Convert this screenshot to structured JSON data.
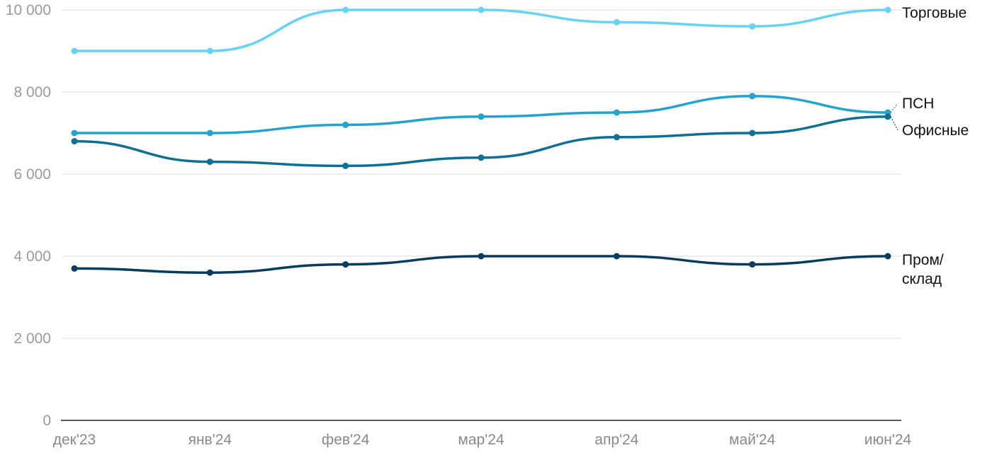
{
  "chart_data": {
    "type": "line",
    "title": "",
    "xlabel": "",
    "ylabel": "",
    "categories": [
      "дек'23",
      "янв'24",
      "фев'24",
      "мар'24",
      "апр'24",
      "май'24",
      "июн'24"
    ],
    "ylim": [
      0,
      10000
    ],
    "yticks": [
      0,
      2000,
      4000,
      6000,
      8000,
      10000
    ],
    "ytick_labels": [
      "0",
      "2 000",
      "4 000",
      "6 000",
      "8 000",
      "10 000"
    ],
    "grid": true,
    "series": [
      {
        "name": "Торговые",
        "color": "#66d3f5",
        "values": [
          9000,
          9000,
          10000,
          10000,
          9700,
          9600,
          10000
        ]
      },
      {
        "name": "ПСН",
        "color": "#23a3cf",
        "values": [
          7000,
          7000,
          7200,
          7400,
          7500,
          7900,
          7500
        ]
      },
      {
        "name": "Офисные",
        "color": "#0f6f95",
        "values": [
          6800,
          6300,
          6200,
          6400,
          6900,
          7000,
          7400
        ]
      },
      {
        "name": "Пром/склад",
        "label_lines": [
          "Пром/",
          "склад"
        ],
        "color": "#063c5e",
        "values": [
          3700,
          3600,
          3800,
          4000,
          4000,
          3800,
          4000
        ]
      }
    ]
  }
}
